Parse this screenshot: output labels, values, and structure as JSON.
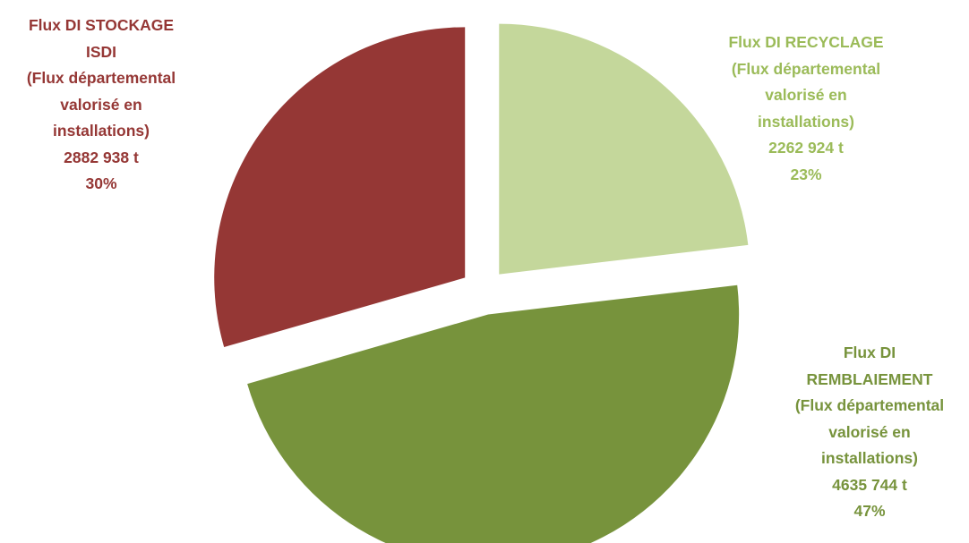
{
  "chart_data": {
    "type": "pie",
    "exploded": "all",
    "slices": [
      {
        "key": "recyclage",
        "label_lines": [
          "Flux DI RECYCLAGE",
          "(Flux départemental",
          "valorisé en",
          "installations)"
        ],
        "value_text": "2262 924 t",
        "percent_text": "23%",
        "value": 2262924,
        "percent": 23,
        "color": "#c4d79b",
        "label_color": "#9bbb59"
      },
      {
        "key": "remblaiement",
        "label_lines": [
          "Flux DI",
          "REMBLAIEMENT",
          "(Flux départemental",
          "valorisé en",
          "installations)"
        ],
        "value_text": "4635 744 t",
        "percent_text": "47%",
        "value": 4635744,
        "percent": 47,
        "color": "#77933c",
        "label_color": "#77933c"
      },
      {
        "key": "stockage",
        "label_lines": [
          "Flux DI STOCKAGE",
          "ISDI",
          "(Flux départemental",
          "valorisé en",
          "installations)"
        ],
        "value_text": "2882 938 t",
        "percent_text": "30%",
        "value": 2882938,
        "percent": 30,
        "color": "#953735",
        "label_color": "#953735"
      }
    ]
  }
}
